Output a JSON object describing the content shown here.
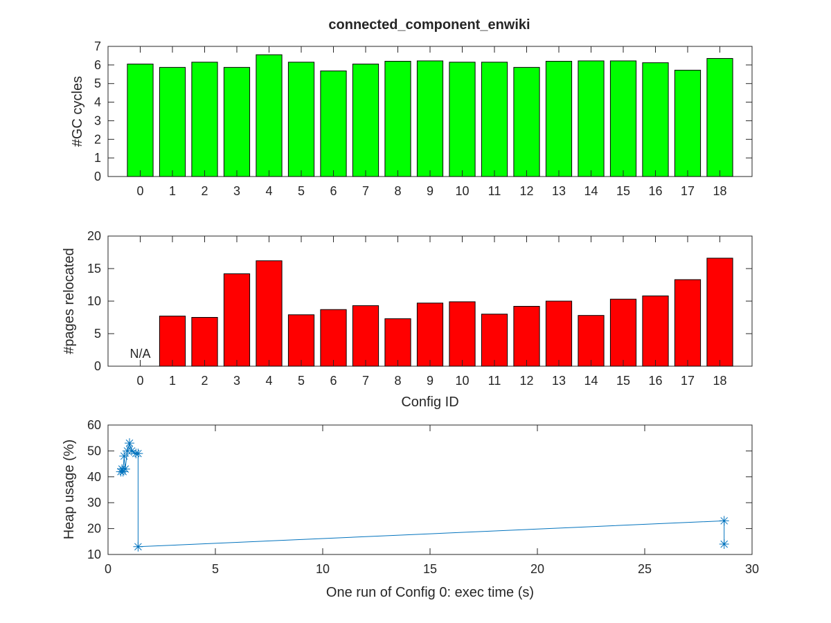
{
  "figure": {
    "title": "connected_component_enwiki"
  },
  "colors": {
    "gc_bars": "#00ff00",
    "relocated_bars": "#ff0000",
    "heap_line": "#0072bd",
    "axis": "#262626"
  },
  "chart_data": [
    {
      "type": "bar",
      "categories": [
        "0",
        "1",
        "2",
        "3",
        "4",
        "5",
        "6",
        "7",
        "8",
        "9",
        "10",
        "11",
        "12",
        "13",
        "14",
        "15",
        "16",
        "17",
        "18"
      ],
      "values": [
        6.05,
        5.87,
        6.15,
        5.87,
        6.55,
        6.15,
        5.68,
        6.05,
        6.2,
        6.22,
        6.15,
        6.15,
        5.87,
        6.2,
        6.22,
        6.22,
        6.12,
        5.72,
        6.35
      ],
      "xlabel": "",
      "ylabel": "#GC cycles",
      "ylim": [
        0,
        7
      ],
      "yticks": [
        0,
        1,
        2,
        3,
        4,
        5,
        6,
        7
      ],
      "grid": false
    },
    {
      "type": "bar",
      "categories": [
        "0",
        "1",
        "2",
        "3",
        "4",
        "5",
        "6",
        "7",
        "8",
        "9",
        "10",
        "11",
        "12",
        "13",
        "14",
        "15",
        "16",
        "17",
        "18"
      ],
      "values": [
        null,
        7.7,
        7.5,
        14.2,
        16.2,
        7.9,
        8.7,
        9.3,
        7.3,
        9.7,
        9.9,
        8.0,
        9.2,
        10.0,
        7.8,
        10.3,
        10.8,
        13.3,
        16.6
      ],
      "missing_label": "N/A",
      "xlabel": "Config ID",
      "ylabel": "#pages relocated",
      "ylim": [
        0,
        20
      ],
      "yticks": [
        0,
        5,
        10,
        15,
        20
      ],
      "grid": false
    },
    {
      "type": "line",
      "x": [
        0.6,
        0.65,
        0.7,
        0.75,
        0.8,
        0.9,
        1.0,
        1.1,
        1.3,
        1.4,
        1.4,
        28.7,
        28.7
      ],
      "y": [
        42,
        43,
        42,
        48,
        43,
        50,
        53,
        50,
        49,
        49,
        13,
        23,
        14
      ],
      "marker": "asterisk",
      "xlabel": "One run  of Config 0: exec time (s)",
      "ylabel": "Heap usage (%)",
      "xlim": [
        0,
        30
      ],
      "ylim": [
        10,
        60
      ],
      "xticks": [
        0,
        5,
        10,
        15,
        20,
        25,
        30
      ],
      "yticks": [
        10,
        20,
        30,
        40,
        50,
        60
      ],
      "grid": false
    }
  ]
}
